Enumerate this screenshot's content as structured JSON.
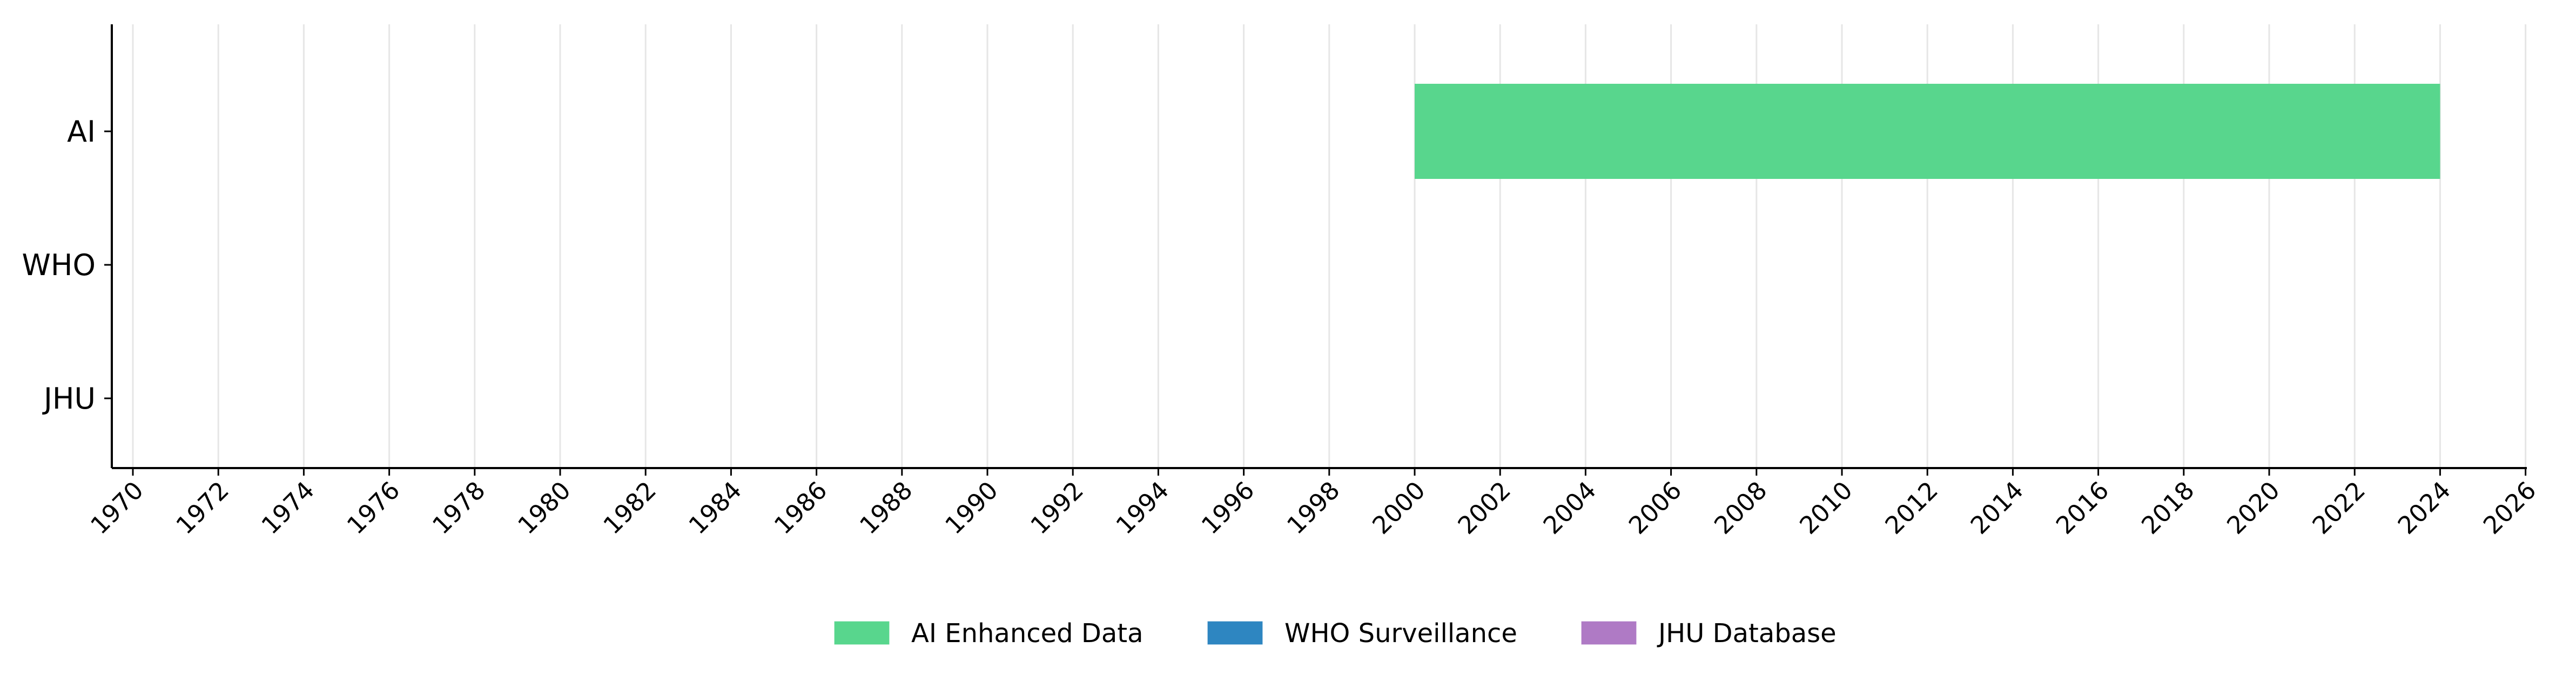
{
  "chart_data": {
    "type": "timeline",
    "categories": [
      "AI",
      "WHO",
      "JHU"
    ],
    "x_range": [
      1969,
      2027
    ],
    "x_ticks": [
      1970,
      1972,
      1974,
      1976,
      1978,
      1980,
      1982,
      1984,
      1986,
      1988,
      1990,
      1992,
      1994,
      1996,
      1998,
      2000,
      2002,
      2004,
      2006,
      2008,
      2010,
      2012,
      2014,
      2016,
      2018,
      2020,
      2022,
      2024,
      2026
    ],
    "grid": "vertical",
    "legend_position": "bottom-center",
    "bars": [
      {
        "category": "AI",
        "start": 2000,
        "end": 2024,
        "series": "AI Enhanced Data"
      }
    ],
    "series": [
      {
        "name": "AI Enhanced Data",
        "color": "#58d68d"
      },
      {
        "name": "WHO Surveillance",
        "color": "#2e86c1"
      },
      {
        "name": "JHU Database",
        "color": "#af7ac5"
      }
    ]
  }
}
